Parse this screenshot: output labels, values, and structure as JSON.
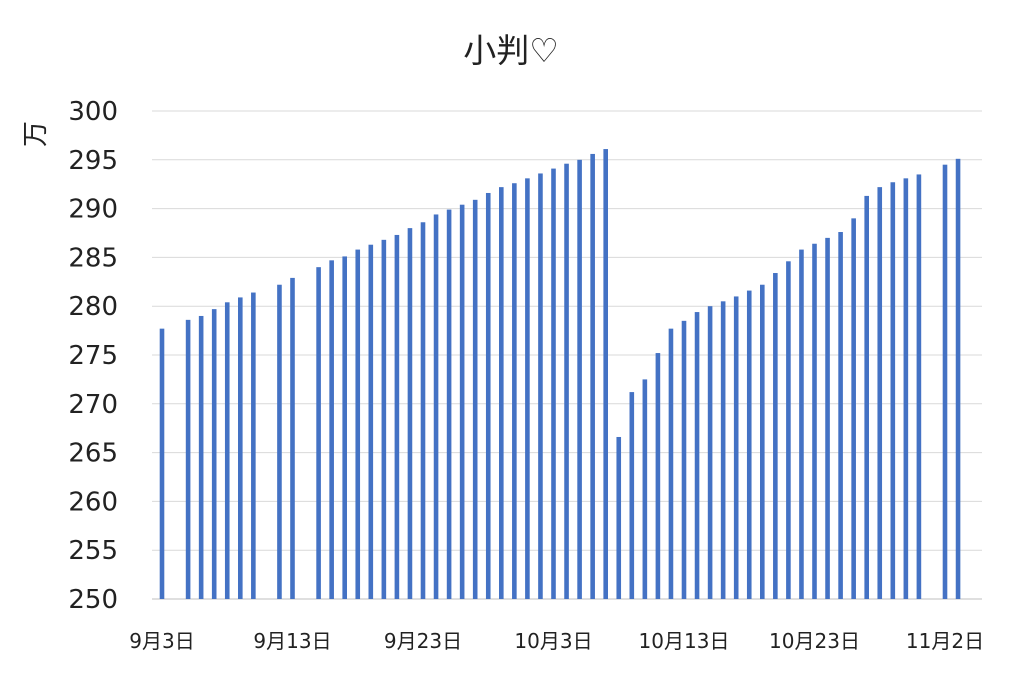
{
  "chart_data": {
    "type": "bar",
    "title": "小判♡",
    "ylabel": "万",
    "xlabel": "",
    "ylim": [
      250,
      300
    ],
    "yticks": [
      250,
      255,
      260,
      265,
      270,
      275,
      280,
      285,
      290,
      295,
      300
    ],
    "x_start": "9月3日",
    "xtick_labels": [
      "9月3日",
      "9月13日",
      "9月23日",
      "10月3日",
      "10月13日",
      "10月23日",
      "11月2日"
    ],
    "grid": true,
    "legend": "none",
    "bar_color": "#4472c4",
    "series": [
      {
        "values": [
          277.7,
          null,
          278.6,
          279.0,
          279.7,
          280.4,
          280.9,
          281.4,
          null,
          282.2,
          282.9,
          null,
          284.0,
          284.7,
          285.1,
          285.8,
          286.3,
          286.8,
          287.3,
          288.0,
          288.6,
          289.4,
          289.9,
          290.4,
          290.9,
          291.6,
          292.2,
          292.6,
          293.1,
          293.6,
          294.1,
          294.6,
          295.0,
          295.6,
          296.1,
          266.6,
          271.2,
          272.5,
          275.2,
          277.7,
          278.5,
          279.4,
          280.0,
          280.5,
          281.0,
          281.6,
          282.2,
          283.4,
          284.6,
          285.8,
          286.4,
          287.0,
          287.6,
          289.0,
          291.3,
          292.2,
          292.7,
          293.1,
          293.5,
          null,
          294.5,
          295.1
        ]
      }
    ]
  }
}
